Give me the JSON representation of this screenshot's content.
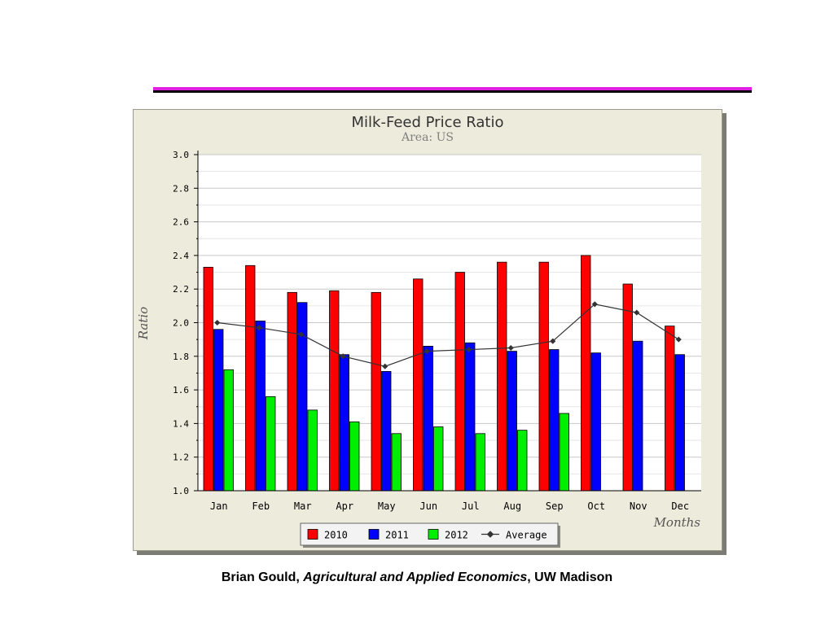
{
  "footer": {
    "author": "Brian Gould, ",
    "department": "Agricultural and Applied Economics",
    "institution": ", UW Madison"
  },
  "colors": {
    "accent_rule": "#e020e0",
    "panel_bg": "#ecebdc",
    "bar_2010": "#ff0000",
    "bar_2011": "#0000ff",
    "bar_2012": "#00ee00",
    "average_line": "#333333"
  },
  "chart_data": {
    "type": "bar",
    "title": "Milk-Feed Price Ratio",
    "subtitle": "Area: US",
    "xlabel": "Months",
    "ylabel": "Ratio",
    "ylim": [
      1.0,
      3.0
    ],
    "yticks": [
      "1.0",
      "1.2",
      "1.4",
      "1.6",
      "1.8",
      "2.0",
      "2.2",
      "2.4",
      "2.6",
      "2.8",
      "3.0"
    ],
    "grid": true,
    "legend_position": "bottom",
    "categories": [
      "Jan",
      "Feb",
      "Mar",
      "Apr",
      "May",
      "Jun",
      "Jul",
      "Aug",
      "Sep",
      "Oct",
      "Nov",
      "Dec"
    ],
    "series": [
      {
        "name": "2010",
        "kind": "bar",
        "color": "#ff0000",
        "values": [
          2.33,
          2.34,
          2.18,
          2.19,
          2.18,
          2.26,
          2.3,
          2.36,
          2.36,
          2.4,
          2.23,
          1.98
        ]
      },
      {
        "name": "2011",
        "kind": "bar",
        "color": "#0000ff",
        "values": [
          1.96,
          2.01,
          2.12,
          1.81,
          1.71,
          1.86,
          1.88,
          1.83,
          1.84,
          1.82,
          1.89,
          1.81
        ]
      },
      {
        "name": "2012",
        "kind": "bar",
        "color": "#00ee00",
        "values": [
          1.72,
          1.56,
          1.48,
          1.41,
          1.34,
          1.38,
          1.34,
          1.36,
          1.46,
          null,
          null,
          null
        ]
      },
      {
        "name": "Average",
        "kind": "line",
        "color": "#333333",
        "values": [
          2.0,
          1.97,
          1.93,
          1.8,
          1.74,
          1.83,
          1.84,
          1.85,
          1.89,
          2.11,
          2.06,
          1.9
        ]
      }
    ]
  }
}
